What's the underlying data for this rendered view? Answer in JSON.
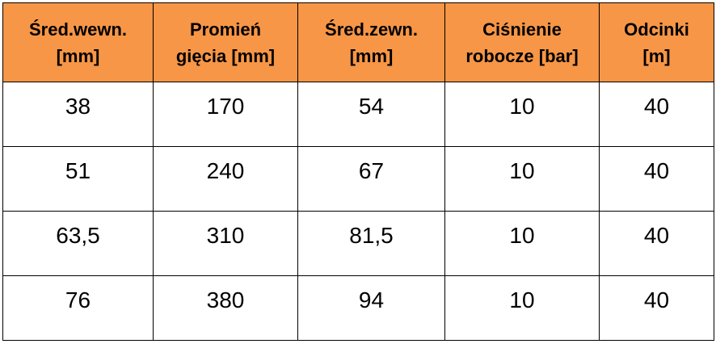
{
  "table": {
    "headers": [
      {
        "line1": "Śred.wewn.",
        "line2": "[mm]"
      },
      {
        "line1": "Promień",
        "line2": "gięcia [mm]"
      },
      {
        "line1": "Śred.zewn.",
        "line2": "[mm]"
      },
      {
        "line1": "Ciśnienie",
        "line2": "robocze [bar]"
      },
      {
        "line1": "Odcinki",
        "line2": "[m]"
      }
    ],
    "rows": [
      [
        "38",
        "170",
        "54",
        "10",
        "40"
      ],
      [
        "51",
        "240",
        "67",
        "10",
        "40"
      ],
      [
        "63,5",
        "310",
        "81,5",
        "10",
        "40"
      ],
      [
        "76",
        "380",
        "94",
        "10",
        "40"
      ]
    ]
  },
  "colors": {
    "header_background": "#f79646",
    "border": "#000000"
  }
}
